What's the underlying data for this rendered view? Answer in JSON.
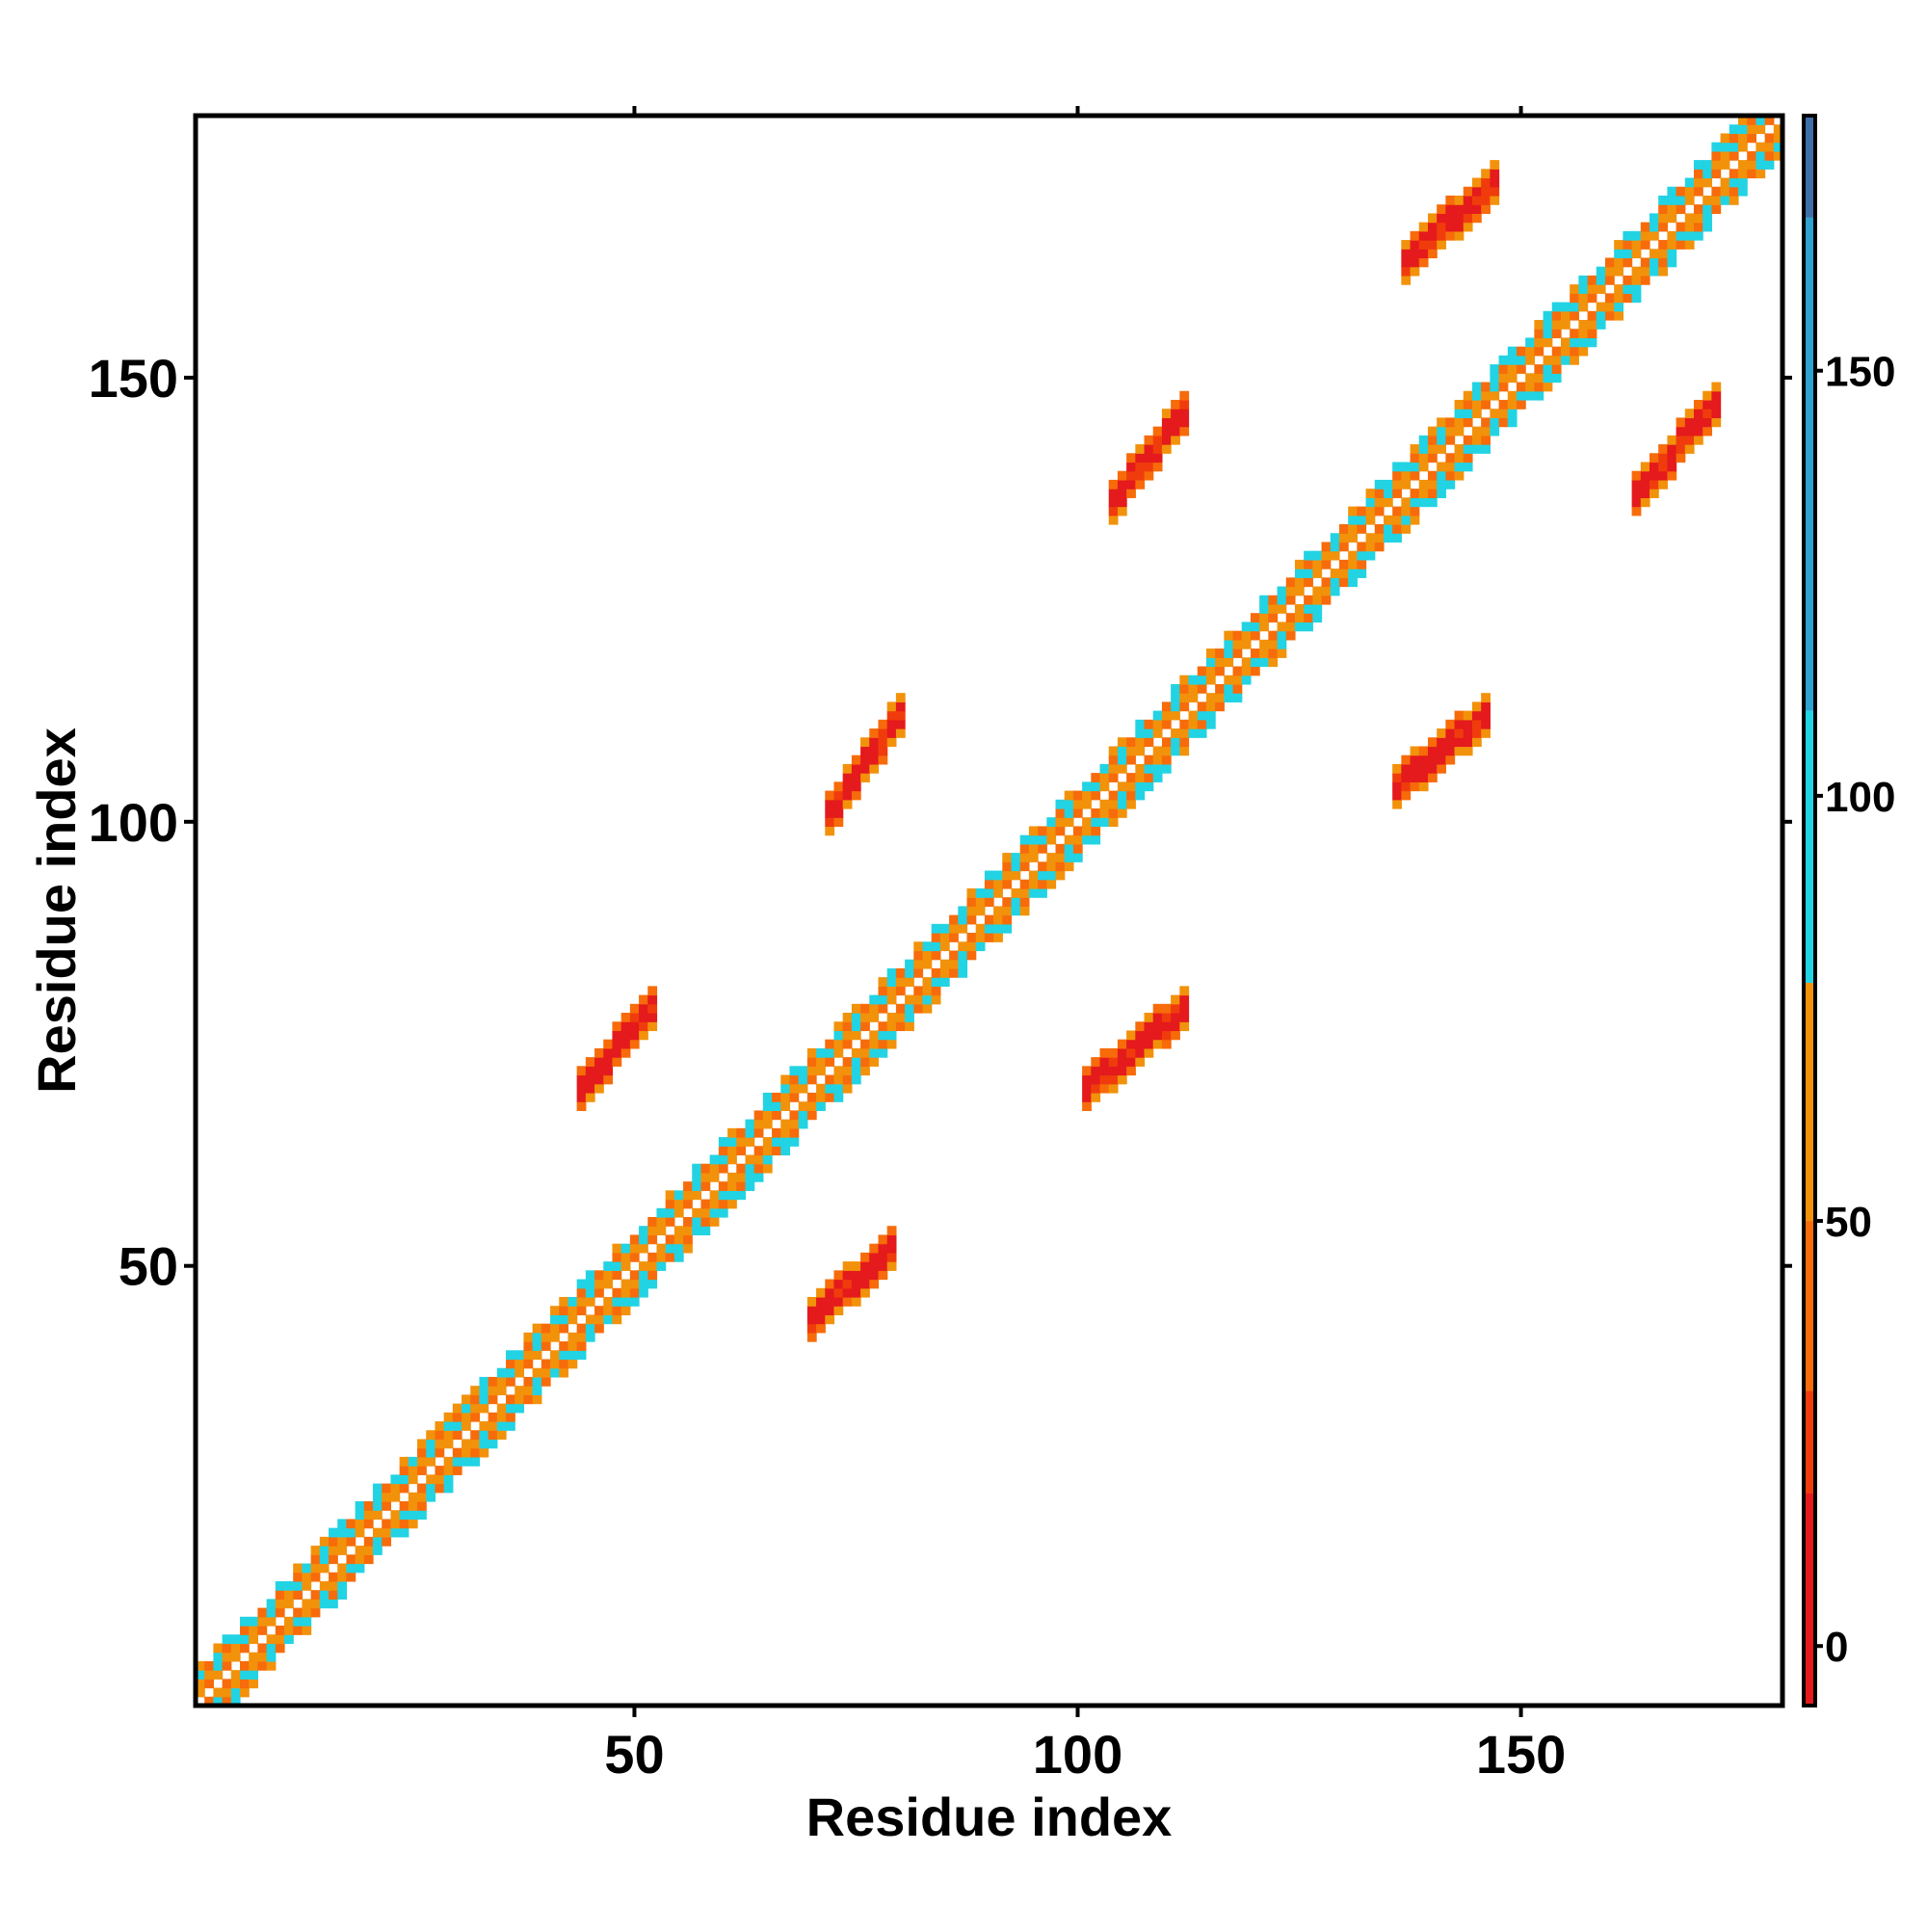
{
  "chart_data": {
    "type": "heatmap",
    "title": "",
    "xlabel": "Residue index",
    "ylabel": "Residue index",
    "xlim": [
      1,
      179
    ],
    "ylim": [
      1,
      179
    ],
    "x_ticks": [
      50,
      100,
      150
    ],
    "y_ticks": [
      50,
      100,
      150
    ],
    "colorbar": {
      "min": -7,
      "max": 180,
      "ticks": [
        0,
        50,
        100,
        150
      ],
      "bands": [
        {
          "from": -7,
          "to": 18,
          "color": "#e41a1c"
        },
        {
          "from": 18,
          "to": 30,
          "color": "#f03c0c"
        },
        {
          "from": 30,
          "to": 50,
          "color": "#f76b0a"
        },
        {
          "from": 50,
          "to": 78,
          "color": "#f2920a"
        },
        {
          "from": 78,
          "to": 110,
          "color": "#22d3e3"
        },
        {
          "from": 110,
          "to": 168,
          "color": "#2ea3cf"
        },
        {
          "from": 168,
          "to": 180,
          "color": "#3f6fa8"
        }
      ]
    },
    "patterns": {
      "diagonal": {
        "start": 1,
        "end": 179,
        "description": "local contacts along main diagonal"
      },
      "off_diagonal_patches": [
        {
          "x": [
            72,
            80
          ],
          "y": [
            101,
            112
          ],
          "value": 5
        },
        {
          "x": [
            104,
            112
          ],
          "y": [
            136,
            146
          ],
          "value": 5
        },
        {
          "x": [
            137,
            147
          ],
          "y": [
            163,
            172
          ],
          "value": 5
        },
        {
          "x": [
            44,
            52
          ],
          "y": [
            70,
            79
          ],
          "value": 5
        },
        {
          "x": [
            70,
            79
          ],
          "y": [
            44,
            52
          ],
          "value": 5
        },
        {
          "x": [
            101,
            112
          ],
          "y": [
            70,
            79
          ],
          "value": 5
        },
        {
          "x": [
            136,
            146
          ],
          "y": [
            104,
            112
          ],
          "value": 5
        },
        {
          "x": [
            163,
            172
          ],
          "y": [
            137,
            147
          ],
          "value": 5
        }
      ]
    }
  }
}
